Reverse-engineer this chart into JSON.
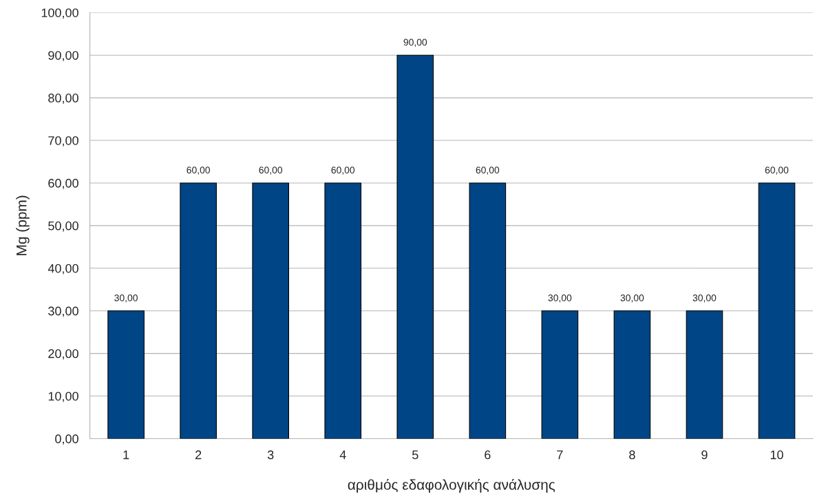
{
  "chart_data": {
    "type": "bar",
    "xlabel": "αριθμός εδαφολογικής ανάλυσης",
    "ylabel": "Mg (ppm)",
    "categories": [
      "1",
      "2",
      "3",
      "4",
      "5",
      "6",
      "7",
      "8",
      "9",
      "10"
    ],
    "values": [
      30,
      60,
      60,
      60,
      90,
      60,
      30,
      30,
      30,
      60
    ],
    "value_labels": [
      "30,00",
      "60,00",
      "60,00",
      "60,00",
      "90,00",
      "60,00",
      "30,00",
      "30,00",
      "30,00",
      "60,00"
    ],
    "color": "#004586",
    "ylim": [
      0,
      100
    ],
    "yticks": [
      {
        "value": 0,
        "label": "0,00"
      },
      {
        "value": 10,
        "label": "10,00"
      },
      {
        "value": 20,
        "label": "20,00"
      },
      {
        "value": 30,
        "label": "30,00"
      },
      {
        "value": 40,
        "label": "40,00"
      },
      {
        "value": 50,
        "label": "50,00"
      },
      {
        "value": 60,
        "label": "60,00"
      },
      {
        "value": 70,
        "label": "70,00"
      },
      {
        "value": 80,
        "label": "80,00"
      },
      {
        "value": 90,
        "label": "90,00"
      },
      {
        "value": 100,
        "label": "100,00"
      }
    ],
    "grid": "y"
  }
}
